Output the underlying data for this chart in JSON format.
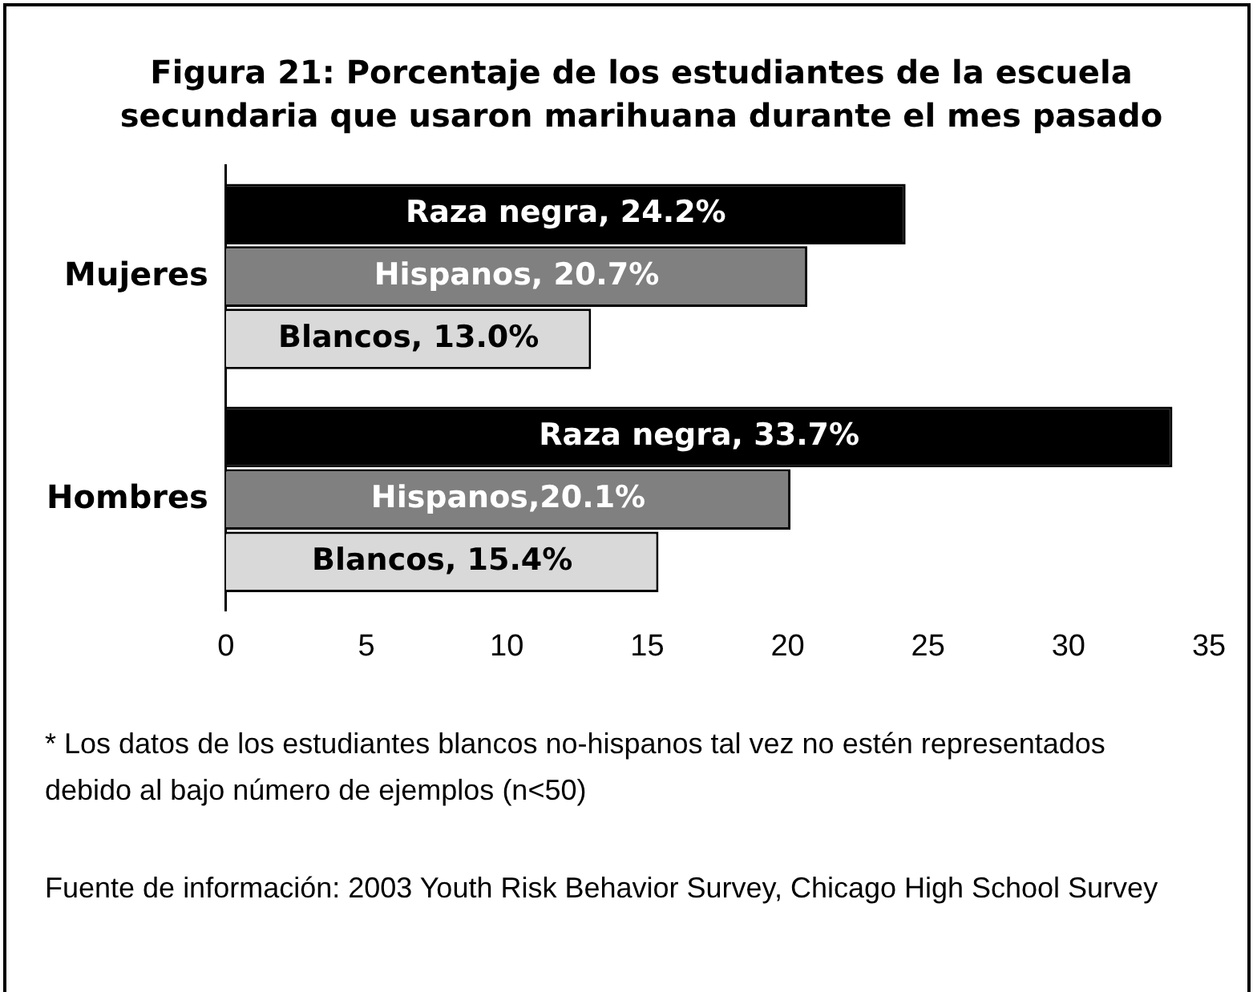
{
  "chart_data": {
    "type": "bar",
    "orientation": "horizontal",
    "title": "Figura 21: Porcentaje de los estudiantes de la escuela secundaria que usaron marihuana durante el mes pasado",
    "categories": [
      "Mujeres",
      "Hombres"
    ],
    "series": [
      {
        "color": "#000000",
        "values": [
          24.2,
          33.7
        ],
        "value_labels": [
          "Raza negra, 24.2%",
          "Raza negra, 33.7%"
        ]
      },
      {
        "color": "#808080",
        "values": [
          20.7,
          20.1
        ],
        "value_labels": [
          "Hispanos, 20.7%",
          "Hispanos,20.1%"
        ]
      },
      {
        "color": "#d9d9d9",
        "values": [
          13.0,
          15.4
        ],
        "value_labels": [
          "Blancos, 13.0%",
          "Blancos, 15.4%"
        ]
      }
    ],
    "xlim": [
      0,
      35
    ],
    "xticks": [
      0,
      5,
      10,
      15,
      20,
      25,
      30,
      35
    ],
    "annotations": [
      "* Los datos de los estudiantes blancos no-hispanos tal vez no estén representados debido al bajo número de ejemplos (n<50)",
      "Fuente de información: 2003 Youth Risk Behavior Survey, Chicago High School Survey"
    ]
  }
}
